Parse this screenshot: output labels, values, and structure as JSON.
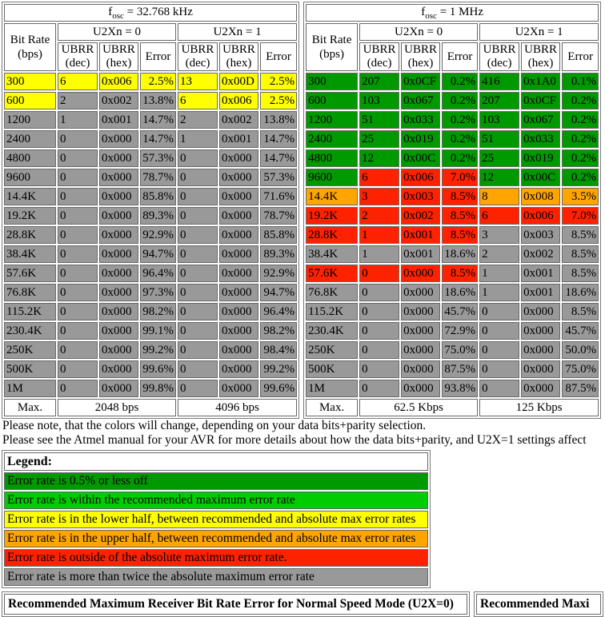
{
  "colors": {
    "dg": "#009900",
    "g": "#00CC00",
    "y": "#FFFF00",
    "o": "#FFA500",
    "r": "#FF2200",
    "gr": "#999999"
  },
  "tables": [
    {
      "title": {
        "base": "f",
        "sub": "osc",
        "rest": " = 32.768 kHz"
      },
      "headers": {
        "bit_rate_line1": "Bit Rate",
        "bit_rate_line2": "(bps)",
        "u2x0": "U2Xn = 0",
        "u2x1": "U2Xn = 1",
        "ubrr": "UBRR",
        "dec": "(dec)",
        "hex": "(hex)",
        "error": "Error"
      },
      "rows": [
        {
          "rate": "300",
          "rc": "y",
          "u2x0": [
            "6",
            "0x006",
            "2.5%"
          ],
          "c0": "y",
          "u2x1": [
            "13",
            "0x00D",
            "2.5%"
          ],
          "c1": "y"
        },
        {
          "rate": "600",
          "rc": "y",
          "u2x0": [
            "2",
            "0x002",
            "13.8%"
          ],
          "c0": "gr",
          "u2x1": [
            "6",
            "0x006",
            "2.5%"
          ],
          "c1": "y"
        },
        {
          "rate": "1200",
          "rc": "gr",
          "u2x0": [
            "1",
            "0x001",
            "14.7%"
          ],
          "c0": "gr",
          "u2x1": [
            "2",
            "0x002",
            "13.8%"
          ],
          "c1": "gr"
        },
        {
          "rate": "2400",
          "rc": "gr",
          "u2x0": [
            "0",
            "0x000",
            "14.7%"
          ],
          "c0": "gr",
          "u2x1": [
            "1",
            "0x001",
            "14.7%"
          ],
          "c1": "gr"
        },
        {
          "rate": "4800",
          "rc": "gr",
          "u2x0": [
            "0",
            "0x000",
            "57.3%"
          ],
          "c0": "gr",
          "u2x1": [
            "0",
            "0x000",
            "14.7%"
          ],
          "c1": "gr"
        },
        {
          "rate": "9600",
          "rc": "gr",
          "u2x0": [
            "0",
            "0x000",
            "78.7%"
          ],
          "c0": "gr",
          "u2x1": [
            "0",
            "0x000",
            "57.3%"
          ],
          "c1": "gr"
        },
        {
          "rate": "14.4K",
          "rc": "gr",
          "u2x0": [
            "0",
            "0x000",
            "85.8%"
          ],
          "c0": "gr",
          "u2x1": [
            "0",
            "0x000",
            "71.6%"
          ],
          "c1": "gr"
        },
        {
          "rate": "19.2K",
          "rc": "gr",
          "u2x0": [
            "0",
            "0x000",
            "89.3%"
          ],
          "c0": "gr",
          "u2x1": [
            "0",
            "0x000",
            "78.7%"
          ],
          "c1": "gr"
        },
        {
          "rate": "28.8K",
          "rc": "gr",
          "u2x0": [
            "0",
            "0x000",
            "92.9%"
          ],
          "c0": "gr",
          "u2x1": [
            "0",
            "0x000",
            "85.8%"
          ],
          "c1": "gr"
        },
        {
          "rate": "38.4K",
          "rc": "gr",
          "u2x0": [
            "0",
            "0x000",
            "94.7%"
          ],
          "c0": "gr",
          "u2x1": [
            "0",
            "0x000",
            "89.3%"
          ],
          "c1": "gr"
        },
        {
          "rate": "57.6K",
          "rc": "gr",
          "u2x0": [
            "0",
            "0x000",
            "96.4%"
          ],
          "c0": "gr",
          "u2x1": [
            "0",
            "0x000",
            "92.9%"
          ],
          "c1": "gr"
        },
        {
          "rate": "76.8K",
          "rc": "gr",
          "u2x0": [
            "0",
            "0x000",
            "97.3%"
          ],
          "c0": "gr",
          "u2x1": [
            "0",
            "0x000",
            "94.7%"
          ],
          "c1": "gr"
        },
        {
          "rate": "115.2K",
          "rc": "gr",
          "u2x0": [
            "0",
            "0x000",
            "98.2%"
          ],
          "c0": "gr",
          "u2x1": [
            "0",
            "0x000",
            "96.4%"
          ],
          "c1": "gr"
        },
        {
          "rate": "230.4K",
          "rc": "gr",
          "u2x0": [
            "0",
            "0x000",
            "99.1%"
          ],
          "c0": "gr",
          "u2x1": [
            "0",
            "0x000",
            "98.2%"
          ],
          "c1": "gr"
        },
        {
          "rate": "250K",
          "rc": "gr",
          "u2x0": [
            "0",
            "0x000",
            "99.2%"
          ],
          "c0": "gr",
          "u2x1": [
            "0",
            "0x000",
            "98.4%"
          ],
          "c1": "gr"
        },
        {
          "rate": "500K",
          "rc": "gr",
          "u2x0": [
            "0",
            "0x000",
            "99.6%"
          ],
          "c0": "gr",
          "u2x1": [
            "0",
            "0x000",
            "99.2%"
          ],
          "c1": "gr"
        },
        {
          "rate": "1M",
          "rc": "gr",
          "u2x0": [
            "0",
            "0x000",
            "99.8%"
          ],
          "c0": "gr",
          "u2x1": [
            "0",
            "0x000",
            "99.6%"
          ],
          "c1": "gr"
        }
      ],
      "footer": {
        "label": "Max.",
        "u2x0_max": "2048 bps",
        "u2x1_max": "4096 bps"
      }
    },
    {
      "title": {
        "base": "f",
        "sub": "osc",
        "rest": " = 1 MHz"
      },
      "headers": {
        "bit_rate_line1": "Bit Rate",
        "bit_rate_line2": "(bps)",
        "u2x0": "U2Xn = 0",
        "u2x1": "U2Xn = 1",
        "ubrr": "UBRR",
        "dec": "(dec)",
        "hex": "(hex)",
        "error": "Error"
      },
      "rows": [
        {
          "rate": "300",
          "rc": "dg",
          "u2x0": [
            "207",
            "0x0CF",
            "0.2%"
          ],
          "c0": "dg",
          "u2x1": [
            "416",
            "0x1A0",
            "0.1%"
          ],
          "c1": "dg"
        },
        {
          "rate": "600",
          "rc": "dg",
          "u2x0": [
            "103",
            "0x067",
            "0.2%"
          ],
          "c0": "dg",
          "u2x1": [
            "207",
            "0x0CF",
            "0.2%"
          ],
          "c1": "dg"
        },
        {
          "rate": "1200",
          "rc": "dg",
          "u2x0": [
            "51",
            "0x033",
            "0.2%"
          ],
          "c0": "dg",
          "u2x1": [
            "103",
            "0x067",
            "0.2%"
          ],
          "c1": "dg"
        },
        {
          "rate": "2400",
          "rc": "dg",
          "u2x0": [
            "25",
            "0x019",
            "0.2%"
          ],
          "c0": "dg",
          "u2x1": [
            "51",
            "0x033",
            "0.2%"
          ],
          "c1": "dg"
        },
        {
          "rate": "4800",
          "rc": "dg",
          "u2x0": [
            "12",
            "0x00C",
            "0.2%"
          ],
          "c0": "dg",
          "u2x1": [
            "25",
            "0x019",
            "0.2%"
          ],
          "c1": "dg"
        },
        {
          "rate": "9600",
          "rc": "dg",
          "u2x0": [
            "6",
            "0x006",
            "7.0%"
          ],
          "c0": "r",
          "u2x1": [
            "12",
            "0x00C",
            "0.2%"
          ],
          "c1": "dg"
        },
        {
          "rate": "14.4K",
          "rc": "o",
          "u2x0": [
            "3",
            "0x003",
            "8.5%"
          ],
          "c0": "r",
          "u2x1": [
            "8",
            "0x008",
            "3.5%"
          ],
          "c1": "o"
        },
        {
          "rate": "19.2K",
          "rc": "r",
          "u2x0": [
            "2",
            "0x002",
            "8.5%"
          ],
          "c0": "r",
          "u2x1": [
            "6",
            "0x006",
            "7.0%"
          ],
          "c1": "r"
        },
        {
          "rate": "28.8K",
          "rc": "r",
          "u2x0": [
            "1",
            "0x001",
            "8.5%"
          ],
          "c0": "r",
          "u2x1": [
            "3",
            "0x003",
            "8.5%"
          ],
          "c1": "gr"
        },
        {
          "rate": "38.4K",
          "rc": "gr",
          "u2x0": [
            "1",
            "0x001",
            "18.6%"
          ],
          "c0": "gr",
          "u2x1": [
            "2",
            "0x002",
            "8.5%"
          ],
          "c1": "gr"
        },
        {
          "rate": "57.6K",
          "rc": "r",
          "u2x0": [
            "0",
            "0x000",
            "8.5%"
          ],
          "c0": "r",
          "u2x1": [
            "1",
            "0x001",
            "8.5%"
          ],
          "c1": "gr"
        },
        {
          "rate": "76.8K",
          "rc": "gr",
          "u2x0": [
            "0",
            "0x000",
            "18.6%"
          ],
          "c0": "gr",
          "u2x1": [
            "1",
            "0x001",
            "18.6%"
          ],
          "c1": "gr"
        },
        {
          "rate": "115.2K",
          "rc": "gr",
          "u2x0": [
            "0",
            "0x000",
            "45.7%"
          ],
          "c0": "gr",
          "u2x1": [
            "0",
            "0x000",
            "8.5%"
          ],
          "c1": "gr"
        },
        {
          "rate": "230.4K",
          "rc": "gr",
          "u2x0": [
            "0",
            "0x000",
            "72.9%"
          ],
          "c0": "gr",
          "u2x1": [
            "0",
            "0x000",
            "45.7%"
          ],
          "c1": "gr"
        },
        {
          "rate": "250K",
          "rc": "gr",
          "u2x0": [
            "0",
            "0x000",
            "75.0%"
          ],
          "c0": "gr",
          "u2x1": [
            "0",
            "0x000",
            "50.0%"
          ],
          "c1": "gr"
        },
        {
          "rate": "500K",
          "rc": "gr",
          "u2x0": [
            "0",
            "0x000",
            "87.5%"
          ],
          "c0": "gr",
          "u2x1": [
            "0",
            "0x000",
            "75.0%"
          ],
          "c1": "gr"
        },
        {
          "rate": "1M",
          "rc": "gr",
          "u2x0": [
            "0",
            "0x000",
            "93.8%"
          ],
          "c0": "gr",
          "u2x1": [
            "0",
            "0x000",
            "87.5%"
          ],
          "c1": "gr"
        }
      ],
      "footer": {
        "label": "Max.",
        "u2x0_max": "62.5 Kbps",
        "u2x1_max": "125 Kbps"
      }
    }
  ],
  "notes": {
    "line1": "Please note, that the colors will change, depending on your data bits+parity selection.",
    "line2": "Please see the Atmel manual for your AVR for more details about how the data bits+parity, and U2X=1 settings affect"
  },
  "legend": {
    "title": "Legend:",
    "items": [
      {
        "text": "Error rate is 0.5% or less off",
        "color": "dg"
      },
      {
        "text": "Error rate is within the recommended maximum error rate",
        "color": "g"
      },
      {
        "text": "Error rate is in the lower half, between recommended and absolute max error rates",
        "color": "y"
      },
      {
        "text": "Error rate is in the upper half, between recommended and absolute max error rates",
        "color": "o"
      },
      {
        "text": "Error rate is outside of the absolute maximum error rate.",
        "color": "r"
      },
      {
        "text": "Error rate is more than twice the absolute maximum error rate",
        "color": "gr"
      }
    ]
  },
  "bottom_tables": {
    "left": "Recommended Maximum Receiver Bit Rate Error for Normal Speed Mode (U2X=0)",
    "right": "Recommended Maxi"
  }
}
